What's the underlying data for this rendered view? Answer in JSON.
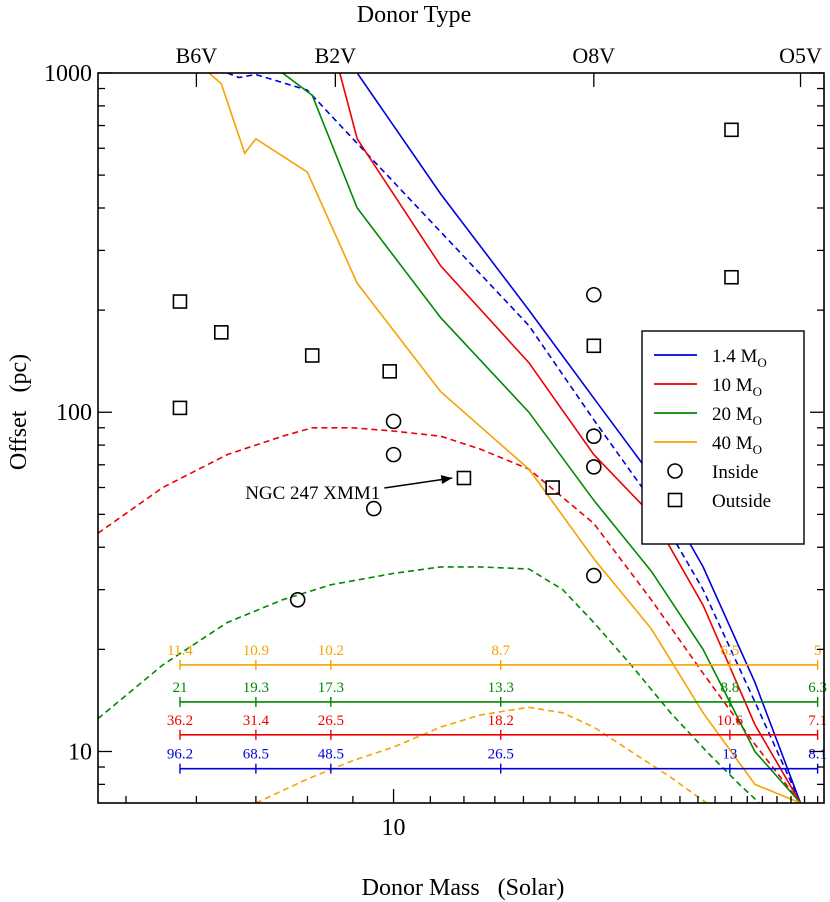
{
  "chart_data": {
    "type": "line",
    "title": "Donor Type",
    "xlabel": "Donor Mass   (Solar)",
    "ylabel": "Offset   (pc)",
    "xscale": "log",
    "yscale": "log",
    "xlim": [
      4.65,
      30.5
    ],
    "ylim": [
      7.05,
      1000
    ],
    "x_tick_labels": [
      {
        "x": 10,
        "label": "10"
      }
    ],
    "y_tick_labels": [
      {
        "y": 10,
        "label": "10"
      },
      {
        "y": 100,
        "label": "100"
      },
      {
        "y": 1000,
        "label": "1000"
      }
    ],
    "top_axis": {
      "title": "Donor Type",
      "types": [
        {
          "x": 6.0,
          "label": "B6V"
        },
        {
          "x": 8.6,
          "label": "B2V"
        },
        {
          "x": 16.8,
          "label": "O8V"
        },
        {
          "x": 28.7,
          "label": "O5V"
        }
      ]
    },
    "colors": {
      "s1": "#0000dd",
      "s10": "#ee0000",
      "s20": "#008800",
      "s40": "#f5a300",
      "text": "#000000"
    },
    "series": [
      {
        "name": "1.4 MO",
        "label": "1.4 M",
        "sub": "O",
        "color": "#0000dd",
        "solid": [
          [
            9.1,
            1000
          ],
          [
            11.3,
            440
          ],
          [
            14.2,
            200
          ],
          [
            16.8,
            110
          ],
          [
            19.5,
            65
          ],
          [
            22.3,
            35
          ],
          [
            25.5,
            16
          ],
          [
            28.7,
            7.05
          ]
        ],
        "dashed": [
          [
            6.5,
            1000
          ],
          [
            6.7,
            970
          ],
          [
            7.0,
            990
          ],
          [
            8.0,
            890
          ],
          [
            9.1,
            620
          ],
          [
            11.3,
            340
          ],
          [
            14.2,
            180
          ],
          [
            16.8,
            95
          ],
          [
            19.5,
            55
          ],
          [
            22.3,
            30
          ],
          [
            25.5,
            14
          ],
          [
            28.7,
            7.05
          ]
        ]
      },
      {
        "name": "10 MO",
        "label": "10 M",
        "sub": "O",
        "color": "#ee0000",
        "solid": [
          [
            8.7,
            1000
          ],
          [
            9.1,
            640
          ],
          [
            11.3,
            270
          ],
          [
            14.2,
            140
          ],
          [
            16.8,
            75
          ],
          [
            19.5,
            50
          ],
          [
            22.3,
            27
          ],
          [
            25.5,
            12
          ],
          [
            28.7,
            7.05
          ]
        ],
        "dashed": [
          [
            4.65,
            44
          ],
          [
            5.5,
            60
          ],
          [
            6.5,
            75
          ],
          [
            7.5,
            85
          ],
          [
            8.1,
            90
          ],
          [
            9.0,
            90
          ],
          [
            10.0,
            88
          ],
          [
            11.3,
            85
          ],
          [
            12.5,
            78
          ],
          [
            14.2,
            68
          ],
          [
            16.8,
            47
          ],
          [
            19.5,
            28
          ],
          [
            22.3,
            17
          ],
          [
            25.5,
            10.5
          ],
          [
            28.7,
            7.05
          ]
        ]
      },
      {
        "name": "20 MO",
        "label": "20 M",
        "sub": "O",
        "color": "#008800",
        "solid": [
          [
            7.5,
            1000
          ],
          [
            8.1,
            860
          ],
          [
            9.1,
            400
          ],
          [
            11.3,
            190
          ],
          [
            14.2,
            100
          ],
          [
            16.8,
            55
          ],
          [
            19.5,
            34
          ],
          [
            22.3,
            20
          ],
          [
            25.5,
            10
          ],
          [
            28.7,
            7.05
          ]
        ],
        "dashed": [
          [
            4.65,
            12.5
          ],
          [
            5.5,
            18
          ],
          [
            6.5,
            24
          ],
          [
            7.5,
            28
          ],
          [
            8.5,
            31
          ],
          [
            10.0,
            33.5
          ],
          [
            11.3,
            35
          ],
          [
            12.5,
            35
          ],
          [
            14.2,
            34.5
          ],
          [
            15.5,
            30
          ],
          [
            16.8,
            24
          ],
          [
            18.5,
            18
          ],
          [
            20.5,
            13
          ],
          [
            22.5,
            10
          ],
          [
            24.5,
            8
          ],
          [
            25.8,
            7.05
          ]
        ]
      },
      {
        "name": "40 MO",
        "label": "40 M",
        "sub": "O",
        "color": "#f5a300",
        "solid": [
          [
            6.2,
            1000
          ],
          [
            6.4,
            930
          ],
          [
            6.8,
            580
          ],
          [
            7.0,
            640
          ],
          [
            8.0,
            510
          ],
          [
            9.1,
            240
          ],
          [
            11.3,
            115
          ],
          [
            14.2,
            68
          ],
          [
            16.8,
            37
          ],
          [
            19.5,
            23
          ],
          [
            22.3,
            13
          ],
          [
            25.5,
            8
          ],
          [
            28.7,
            7.05
          ]
        ],
        "dashed": [
          [
            7.0,
            7.05
          ],
          [
            8.0,
            8.3
          ],
          [
            9.0,
            9.4
          ],
          [
            10.0,
            10.3
          ],
          [
            11.3,
            11.8
          ],
          [
            12.5,
            12.8
          ],
          [
            14.2,
            13.5
          ],
          [
            15.5,
            13
          ],
          [
            16.8,
            11.8
          ],
          [
            18.5,
            10
          ],
          [
            20.5,
            8.4
          ],
          [
            22.5,
            7.05
          ]
        ]
      }
    ],
    "points_inside": [
      {
        "x": 7.8,
        "y": 28
      },
      {
        "x": 9.5,
        "y": 52
      },
      {
        "x": 10.0,
        "y": 94
      },
      {
        "x": 10.0,
        "y": 75
      },
      {
        "x": 16.8,
        "y": 222
      },
      {
        "x": 16.8,
        "y": 85
      },
      {
        "x": 16.8,
        "y": 69
      },
      {
        "x": 16.8,
        "y": 33
      }
    ],
    "points_outside": [
      {
        "x": 5.75,
        "y": 212
      },
      {
        "x": 5.75,
        "y": 103
      },
      {
        "x": 6.4,
        "y": 172
      },
      {
        "x": 8.1,
        "y": 147
      },
      {
        "x": 9.9,
        "y": 132
      },
      {
        "x": 12.0,
        "y": 64
      },
      {
        "x": 15.1,
        "y": 60
      },
      {
        "x": 16.8,
        "y": 157
      },
      {
        "x": 24.0,
        "y": 680
      },
      {
        "x": 24.0,
        "y": 250
      }
    ],
    "annotation": {
      "text": "NGC 247 XMM1",
      "target_x": 11.95,
      "target_y": 64
    },
    "legend": {
      "position": "right",
      "entries": [
        "1.4 MO",
        "10 MO",
        "20 MO",
        "40 MO",
        "Inside",
        "Outside"
      ],
      "inside_label": "Inside",
      "outside_label": "Outside"
    },
    "scale_bars": [
      {
        "series": "40 MO",
        "color": "#f5a300",
        "y": 18,
        "ticks": [
          {
            "x": 5.75,
            "label": "11.4"
          },
          {
            "x": 7.0,
            "label": "10.9"
          },
          {
            "x": 8.5,
            "label": "10.2"
          },
          {
            "x": 13.2,
            "label": "8.7"
          },
          {
            "x": 23.9,
            "label": "6.5"
          },
          {
            "x": 30.0,
            "label": "5"
          }
        ]
      },
      {
        "series": "20 MO",
        "color": "#008800",
        "y": 14,
        "ticks": [
          {
            "x": 5.75,
            "label": "21"
          },
          {
            "x": 7.0,
            "label": "19.3"
          },
          {
            "x": 8.5,
            "label": "17.3"
          },
          {
            "x": 13.2,
            "label": "13.3"
          },
          {
            "x": 23.9,
            "label": "8.8"
          },
          {
            "x": 30.0,
            "label": "6.3"
          }
        ]
      },
      {
        "series": "10 MO",
        "color": "#ee0000",
        "y": 11.2,
        "ticks": [
          {
            "x": 5.75,
            "label": "36.2"
          },
          {
            "x": 7.0,
            "label": "31.4"
          },
          {
            "x": 8.5,
            "label": "26.5"
          },
          {
            "x": 13.2,
            "label": "18.2"
          },
          {
            "x": 23.9,
            "label": "10.6"
          },
          {
            "x": 30.0,
            "label": "7.1"
          }
        ]
      },
      {
        "series": "1.4 MO",
        "color": "#0000dd",
        "y": 8.9,
        "ticks": [
          {
            "x": 5.75,
            "label": "96.2"
          },
          {
            "x": 7.0,
            "label": "68.5"
          },
          {
            "x": 8.5,
            "label": "48.5"
          },
          {
            "x": 13.2,
            "label": "26.5"
          },
          {
            "x": 23.9,
            "label": "13"
          },
          {
            "x": 30.0,
            "label": "8.1"
          }
        ]
      }
    ]
  }
}
